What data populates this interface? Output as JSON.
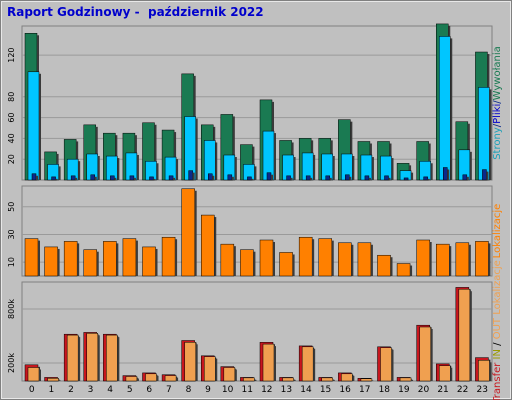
{
  "title": "Raport Godzinowy -  październik 2022",
  "colors": {
    "background": "#c0c0c0",
    "hits": "#1a7a52",
    "files": "#00c6ff",
    "pages": "#0a2a8a",
    "kbytes_in": "#c8161e",
    "kbytes_out": "#f0a050",
    "visits": "#ff8000"
  },
  "chart_data": [
    {
      "type": "bar",
      "categories": [
        "0",
        "1",
        "2",
        "3",
        "4",
        "5",
        "6",
        "7",
        "8",
        "9",
        "10",
        "11",
        "12",
        "13",
        "14",
        "15",
        "16",
        "17",
        "18",
        "19",
        "20",
        "21",
        "22",
        "23"
      ],
      "ylabel_parts": [
        {
          "text": "Strony",
          "color": "#1aa0b8"
        },
        {
          "text": "/",
          "color": "#0a2a8a"
        },
        {
          "text": "Pliki",
          "color": "#0000cc"
        },
        {
          "text": "/",
          "color": "#0a2a8a"
        },
        {
          "text": "Wywołania",
          "color": "#1a7a52"
        }
      ],
      "yticks": [
        "20",
        "40",
        "60",
        "80",
        "120"
      ],
      "ytick_values": [
        20,
        40,
        60,
        80,
        120
      ],
      "ylim": [
        0,
        148
      ],
      "grid": true,
      "series": [
        {
          "key": "hits",
          "values": [
            141,
            27,
            39,
            53,
            45,
            45,
            55,
            48,
            102,
            53,
            63,
            34,
            77,
            38,
            40,
            40,
            58,
            37,
            37,
            16,
            37,
            150,
            56,
            123
          ]
        },
        {
          "key": "files",
          "values": [
            104,
            15,
            20,
            25,
            23,
            26,
            18,
            22,
            61,
            38,
            24,
            15,
            47,
            24,
            26,
            25,
            25,
            24,
            23,
            9,
            18,
            138,
            29,
            89
          ]
        },
        {
          "key": "pages",
          "values": [
            6,
            3,
            4,
            5,
            4,
            4,
            3,
            4,
            9,
            6,
            5,
            3,
            7,
            4,
            4,
            4,
            5,
            4,
            4,
            2,
            3,
            12,
            5,
            10
          ]
        }
      ]
    },
    {
      "type": "bar",
      "categories": [
        "0",
        "1",
        "2",
        "3",
        "4",
        "5",
        "6",
        "7",
        "8",
        "9",
        "10",
        "11",
        "12",
        "13",
        "14",
        "15",
        "16",
        "17",
        "18",
        "19",
        "20",
        "21",
        "22",
        "23"
      ],
      "ylabel": "Lokalizacje",
      "yticks": [
        "10",
        "30",
        "50"
      ],
      "ytick_values": [
        10,
        30,
        50
      ],
      "ylim": [
        0,
        65
      ],
      "grid": true,
      "series": [
        {
          "key": "visits",
          "values": [
            27,
            21,
            25,
            19,
            25,
            27,
            21,
            28,
            63,
            44,
            23,
            19,
            26,
            17,
            28,
            27,
            24,
            24,
            15,
            9,
            26,
            23,
            24,
            25
          ]
        }
      ]
    },
    {
      "type": "bar",
      "categories": [
        "0",
        "1",
        "2",
        "3",
        "4",
        "5",
        "6",
        "7",
        "8",
        "9",
        "10",
        "11",
        "12",
        "13",
        "14",
        "15",
        "16",
        "17",
        "18",
        "19",
        "20",
        "21",
        "22",
        "23"
      ],
      "ylabel_parts": [
        {
          "text": "Transfer",
          "color": "#c8161e"
        },
        {
          "text": " ",
          "color": "#000000"
        },
        {
          "text": "IN",
          "color": "#9a9a00"
        },
        {
          "text": " / ",
          "color": "#000000"
        },
        {
          "text": "OUT",
          "color": "#f0a050"
        },
        {
          "text": " ",
          "color": "#000000"
        },
        {
          "text": "Lokalizacje",
          "color": "#f0a050"
        }
      ],
      "yticks": [
        "200k",
        "800k"
      ],
      "ytick_values": [
        200,
        800
      ],
      "ylim": [
        0,
        1100
      ],
      "grid": true,
      "series": [
        {
          "key": "kbytes_in",
          "values": [
            180,
            40,
            520,
            540,
            520,
            60,
            90,
            70,
            450,
            280,
            160,
            40,
            430,
            40,
            390,
            40,
            90,
            30,
            380,
            40,
            620,
            190,
            1040,
            260
          ]
        },
        {
          "key": "kbytes_out",
          "values": [
            150,
            30,
            510,
            530,
            510,
            50,
            80,
            60,
            430,
            270,
            150,
            35,
            410,
            35,
            380,
            35,
            80,
            25,
            370,
            35,
            600,
            170,
            1020,
            230
          ]
        }
      ]
    }
  ]
}
